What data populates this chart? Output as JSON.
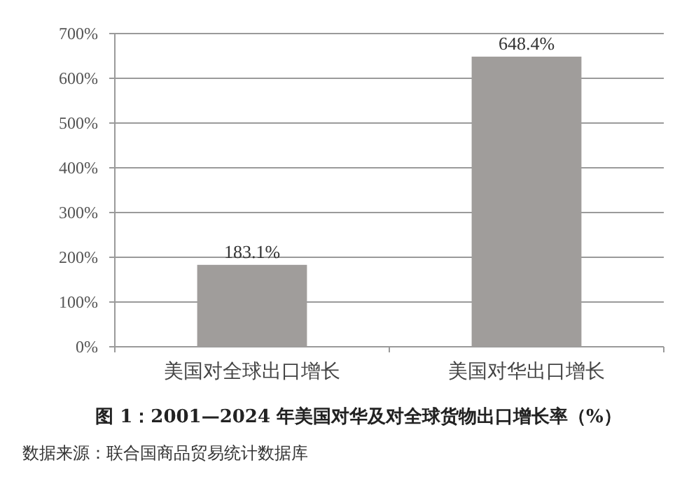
{
  "chart_data": {
    "type": "bar",
    "title": "图 1：2001—2024 年美国对华及对全球货物出口增长率（%）",
    "annotations": [
      "数据来源：联合国商品贸易统计数据库"
    ],
    "categories": [
      "美国对全球出口增长",
      "美国对华出口增长"
    ],
    "values": [
      183.1,
      648.4
    ],
    "color": "#a09d9b",
    "value_labels": [
      "183.1%",
      "648.4%"
    ],
    "ylim": [
      0,
      700
    ],
    "yticks": [
      {
        "value": 0,
        "label": "0%"
      },
      {
        "value": 100,
        "label": "100%"
      },
      {
        "value": 200,
        "label": "200%"
      },
      {
        "value": 300,
        "label": "300%"
      },
      {
        "value": 400,
        "label": "400%"
      },
      {
        "value": 500,
        "label": "500%"
      },
      {
        "value": 600,
        "label": "600%"
      },
      {
        "value": 700,
        "label": "700%"
      }
    ],
    "grid": "y"
  }
}
